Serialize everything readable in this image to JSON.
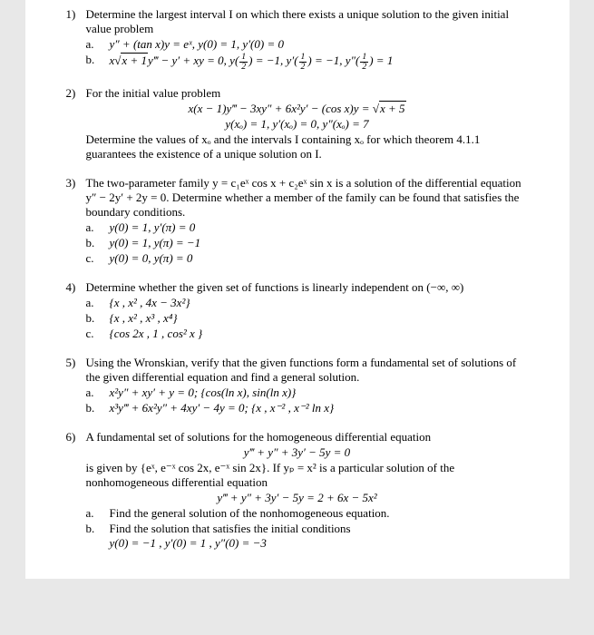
{
  "p1": {
    "num": "1)",
    "text": "Determine the largest interval I on which there exists a unique solution to the given initial value problem",
    "a_label": "a.",
    "a": "y″ + (tan x)y = eˣ,  y(0) = 1,  y′(0) = 0",
    "b_label": "b.",
    "b_pre": "x",
    "b_sqrt": "x + 1",
    "b_post": "y‴ − y′ + xy = 0,  y",
    "b_half1": " = −1,  y′",
    "b_half2": " = −1,  y″",
    "b_end": " = 1"
  },
  "p2": {
    "num": "2)",
    "text": "For the initial value problem",
    "eq1_pre": "x(x − 1)y‴ − 3xy″ + 6x²y′ − (cos x)y = ",
    "eq1_sqrt": "x + 5",
    "eq2": "y(xₒ) = 1,  y′(xₒ) = 0,  y″(xₒ) = 7",
    "text2": "Determine the values of xₒ and the intervals I containing xₒ for which theorem 4.1.1 guarantees the existence of a unique solution on I."
  },
  "p3": {
    "num": "3)",
    "text": "The two-parameter family y = c₁eˣ cos x + c₂eˣ sin x is a solution of the differential equation y″ − 2y′ + 2y = 0. Determine whether a member of the family can be found that satisfies the boundary conditions.",
    "a_label": "a.",
    "a": "y(0) = 1,  y′(π) = 0",
    "b_label": "b.",
    "b": "y(0) = 1,  y(π) = −1",
    "c_label": "c.",
    "c": "y(0) = 0,  y(π) = 0"
  },
  "p4": {
    "num": "4)",
    "text": "Determine whether the given set of functions is linearly independent on (−∞, ∞)",
    "a_label": "a.",
    "a": "{x , x² , 4x − 3x²}",
    "b_label": "b.",
    "b": "{x , x² , x³ , x⁴}",
    "c_label": "c.",
    "c": "{cos 2x , 1 , cos² x }"
  },
  "p5": {
    "num": "5)",
    "text": "Using the Wronskian, verify that the given functions form a fundamental set of solutions of the given differential equation and find a general solution.",
    "a_label": "a.",
    "a": "x²y″ + xy′ + y = 0;   {cos(ln x), sin(ln x)}",
    "b_label": "b.",
    "b": "x³y‴ + 6x²y″ + 4xy′ − 4y = 0;   {x , x⁻² , x⁻² ln x}"
  },
  "p6": {
    "num": "6)",
    "text": "A fundamental set of solutions for the homogeneous differential equation",
    "eq1": "y‴ + y″ + 3y′ − 5y = 0",
    "text2": "is given by {eˣ, e⁻ˣ cos 2x, e⁻ˣ sin 2x}. If yₚ = x² is a particular solution of the nonhomogeneous differential equation",
    "eq2": "y‴ + y″ + 3y′ − 5y = 2 + 6x − 5x²",
    "a_label": "a.",
    "a": "Find the general solution of the nonhomogeneous equation.",
    "b_label": "b.",
    "b": "Find the solution that satisfies the initial conditions",
    "b_eq": "y(0) = −1 , y′(0) = 1 , y″(0) = −3"
  }
}
